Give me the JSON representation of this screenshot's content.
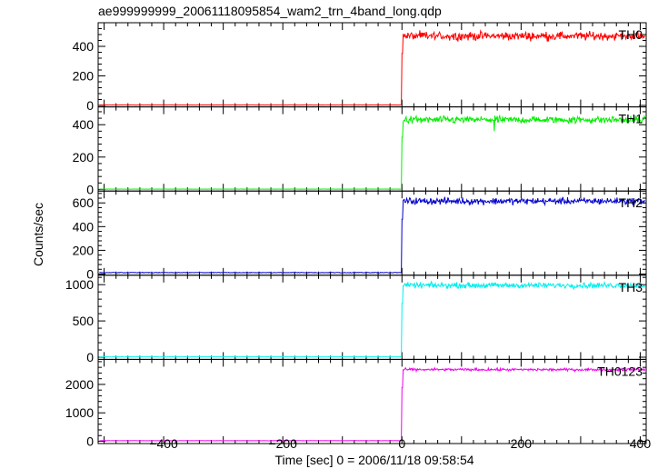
{
  "chart_data": {
    "type": "line",
    "title": "ae999999999_20061118095854_wam2_trn_4band_long.qdp",
    "xlabel": "Time [sec] 0 = 2006/11/18 09:58:54",
    "ylabel": "Counts/sec",
    "xlim": [
      -510,
      410
    ],
    "x_ticks": [
      -400,
      -200,
      0,
      200,
      400
    ],
    "x_tick_labels": [
      "−400",
      "−200",
      "0",
      "200",
      "400"
    ],
    "grid": false,
    "step_time": 0,
    "panels": [
      {
        "name": "TH0",
        "color": "#ff0000",
        "ylim": [
          -10,
          560
        ],
        "yticks": [
          0,
          200,
          400
        ],
        "baseline": 3,
        "level": 470,
        "noise": 28,
        "dips": []
      },
      {
        "name": "TH1",
        "color": "#00ee00",
        "ylim": [
          -10,
          510
        ],
        "yticks": [
          0,
          200,
          400
        ],
        "baseline": 2,
        "level": 430,
        "noise": 22,
        "dips": [
          [
            155,
            360
          ]
        ]
      },
      {
        "name": "TH2",
        "color": "#0000cc",
        "ylim": [
          -10,
          700
        ],
        "yticks": [
          0,
          200,
          400,
          600
        ],
        "baseline": 12,
        "level": 615,
        "noise": 28,
        "dips": []
      },
      {
        "name": "TH3",
        "color": "#00eeee",
        "ylim": [
          -30,
          1130
        ],
        "yticks": [
          0,
          500,
          1000
        ],
        "baseline": 5,
        "level": 990,
        "noise": 38,
        "dips": []
      },
      {
        "name": "TH0123",
        "color": "#ee00ee",
        "ylim": [
          -80,
          2880
        ],
        "yticks": [
          0,
          1000,
          2000
        ],
        "baseline": 20,
        "level": 2520,
        "noise": 45,
        "dips": []
      }
    ]
  }
}
